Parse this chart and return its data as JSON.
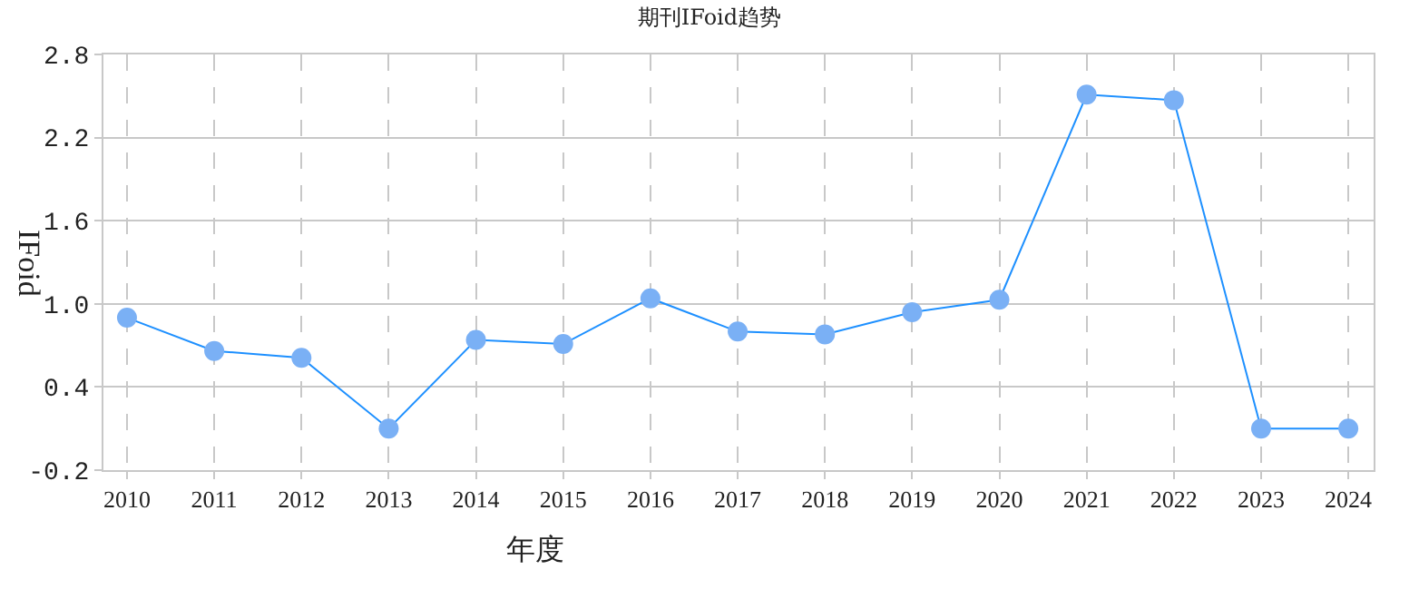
{
  "chart_data": {
    "type": "line",
    "title": "期刊IFoid趋势",
    "xlabel": "年度",
    "ylabel": "IFoid",
    "x": [
      2010,
      2011,
      2012,
      2013,
      2014,
      2015,
      2016,
      2017,
      2018,
      2019,
      2020,
      2021,
      2022,
      2023,
      2024
    ],
    "series": [
      {
        "color": "#1e90ff",
        "values": [
          0.9,
          0.66,
          0.61,
          0.1,
          0.74,
          0.71,
          1.04,
          0.8,
          0.78,
          0.94,
          1.03,
          2.51,
          2.47,
          0.1,
          0.1
        ]
      }
    ],
    "xlim": [
      2009.73,
      2024.29
    ],
    "xticks": [
      2010,
      2011,
      2012,
      2013,
      2014,
      2015,
      2016,
      2017,
      2018,
      2019,
      2020,
      2021,
      2022,
      2023,
      2024
    ],
    "ylim": [
      -0.2,
      2.8
    ],
    "yticks": [
      {
        "value": -0.2,
        "label": "-0.2"
      },
      {
        "value": 0.4,
        "label": "0.4"
      },
      {
        "value": 1.0,
        "label": "1.0"
      },
      {
        "value": 1.6,
        "label": "1.6"
      },
      {
        "value": 2.2,
        "label": "2.2"
      },
      {
        "value": 2.8,
        "label": "2.8"
      }
    ],
    "grid": true,
    "marker": "circle",
    "line_style": "solid"
  }
}
